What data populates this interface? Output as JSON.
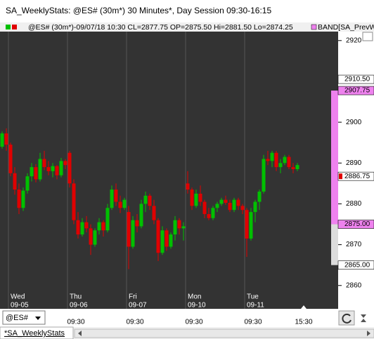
{
  "window": {
    "title": "SA_WeeklyStats: @ES# (30m*) 30 Minutes*, Day Session 09:30-16:15",
    "header_info": "@ES# (30m*)-09/07/18 10:30 CL=2877.75 OP=2875.50 Hi=2881.50 Lo=2874.25",
    "header_indicator": "BAND[SA_PrevW",
    "symbol": "@ES#",
    "tab": "*SA_WeeklyStats"
  },
  "chart_data": {
    "type": "candlestick",
    "up_color": "#00c000",
    "down_color": "#e00000",
    "ylim": [
      2859.1,
      2922.2
    ],
    "yticks": [
      2860,
      2870,
      2880,
      2890,
      2900,
      2910,
      2920
    ],
    "markers": [
      {
        "value": 2910.5,
        "label": "2910.50",
        "color": "#ffffff"
      },
      {
        "value": 2907.75,
        "label": "2907.75",
        "color": "#ee82ee"
      },
      {
        "value": 2886.75,
        "label": "2886.75",
        "color": "#ffffff"
      },
      {
        "value": 2875,
        "label": "2875.00",
        "color": "#ee82ee"
      },
      {
        "value": 2865,
        "label": "2865.00",
        "color": "#ffffff"
      }
    ],
    "days": [
      {
        "weekday": "Wed",
        "date": "09-05"
      },
      {
        "weekday": "Thu",
        "date": "09-06"
      },
      {
        "weekday": "Fri",
        "date": "09-07"
      },
      {
        "weekday": "Mon",
        "date": "09-10"
      },
      {
        "weekday": "Tue",
        "date": "09-11"
      }
    ],
    "time_labels": [
      "09:30",
      "09:30",
      "09:30",
      "09:30",
      "15:30"
    ],
    "open": [
      2894,
      2897.25,
      2894.5,
      2887.5,
      2883.5,
      2879,
      2883.25,
      2886.75,
      2889,
      2886,
      2891,
      2889,
      2888,
      2889.25,
      2887,
      2890.5,
      2892.5,
      2885,
      2876,
      2872.5,
      2875.5,
      2874,
      2870,
      2873.5,
      2875.5,
      2873.5,
      2879,
      2883.5,
      2880.5,
      2879,
      2878,
      2869.5,
      2876,
      2874.5,
      2880,
      2882,
      2879.5,
      2876,
      2868,
      2873.5,
      2869.5,
      2872.5,
      2876,
      2874,
      2885,
      2883.5,
      2879.5,
      2882.5,
      2880.5,
      2877.5,
      2876.5,
      2879,
      2880,
      2881,
      2880.25,
      2878.5,
      2881,
      2879.5,
      2878.5,
      2871.5,
      2878,
      2880.5,
      2883,
      2891,
      2890.5,
      2892.5,
      2889,
      2890,
      2891.5,
      2889,
      2888.5
    ],
    "high": [
      2897.75,
      2898.5,
      2895,
      2889,
      2885,
      2884,
      2887.5,
      2890,
      2889.75,
      2892.5,
      2893,
      2890.5,
      2890,
      2889.5,
      2891.25,
      2891,
      2893,
      2886,
      2878,
      2876.5,
      2877,
      2875,
      2874,
      2876.5,
      2876,
      2880,
      2884.5,
      2885,
      2882,
      2881.5,
      2879.5,
      2877,
      2877.5,
      2881,
      2883,
      2882.5,
      2881,
      2876.5,
      2874.5,
      2874,
      2873,
      2877,
      2876.5,
      2875.5,
      2888,
      2884,
      2883.5,
      2884.5,
      2881,
      2879,
      2879.5,
      2880.5,
      2881.5,
      2882,
      2881,
      2881.5,
      2881.5,
      2880,
      2879,
      2879,
      2881,
      2883.5,
      2892,
      2893,
      2893,
      2893,
      2891,
      2892,
      2892,
      2890,
      2890
    ],
    "low": [
      2893.5,
      2893,
      2886.75,
      2882.25,
      2877.5,
      2878.25,
      2882.5,
      2885.5,
      2885.25,
      2885.5,
      2888.25,
      2887,
      2886.5,
      2886,
      2886.5,
      2888.5,
      2884,
      2875,
      2871.5,
      2872,
      2873,
      2867.5,
      2869.5,
      2872.5,
      2872,
      2873,
      2878.5,
      2879.5,
      2877.75,
      2878.5,
      2864,
      2869,
      2873,
      2874,
      2878,
      2878.5,
      2875,
      2866,
      2867.5,
      2868.5,
      2869,
      2871,
      2872.5,
      2871,
      2882.5,
      2878.5,
      2879,
      2879.5,
      2876.5,
      2876,
      2876,
      2878,
      2879.5,
      2879.75,
      2878,
      2878,
      2878.5,
      2877.5,
      2867,
      2871,
      2875.5,
      2878.5,
      2882.5,
      2889.5,
      2889,
      2888,
      2887.5,
      2889.5,
      2888.5,
      2887.5,
      2888
    ],
    "close": [
      2897.25,
      2894.5,
      2887.5,
      2883.5,
      2879,
      2883.25,
      2886.75,
      2889,
      2886,
      2891,
      2889,
      2888,
      2889.25,
      2887,
      2890.5,
      2889.5,
      2885,
      2876,
      2872.5,
      2875.5,
      2874,
      2870,
      2873.5,
      2875.5,
      2873.5,
      2879,
      2883.5,
      2880.5,
      2879,
      2881,
      2869.5,
      2876,
      2874.5,
      2880,
      2882,
      2879.5,
      2876,
      2868,
      2873.5,
      2869.5,
      2872.5,
      2876,
      2874,
      2874.5,
      2883.5,
      2879.5,
      2882.5,
      2880.5,
      2877.5,
      2876.5,
      2879,
      2880,
      2881,
      2880.25,
      2878.5,
      2881,
      2879.5,
      2878.5,
      2871.5,
      2878,
      2880.5,
      2883,
      2891,
      2890.5,
      2892.5,
      2889,
      2890,
      2891.5,
      2889,
      2888.5,
      2889.5
    ]
  }
}
